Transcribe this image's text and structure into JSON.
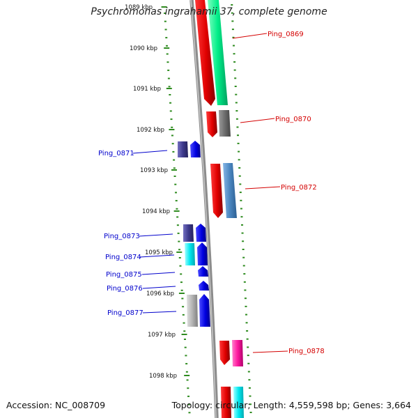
{
  "title": "Psychromonas ingrahamii 37, complete genome",
  "accession": "Accession: NC_008709",
  "summary": "Topology: circular; Length: 4,559,598 bp; Genes: 3,664",
  "colors": {
    "backbone": "#8c8c8c",
    "tick": "#2e8b1f",
    "forward_label": "#d40000",
    "reverse_label": "#0000cc"
  },
  "kbp_labels": [
    "1089 kbp",
    "1090 kbp",
    "1091 kbp",
    "1092 kbp",
    "1093 kbp",
    "1094 kbp",
    "1095 kbp",
    "1096 kbp",
    "1097 kbp",
    "1098 kbp"
  ],
  "genes": [
    {
      "id": "Ping_0869",
      "strand": "forward",
      "label_color": "#d40000",
      "feature_color": "#00ee88"
    },
    {
      "id": "Ping_0870",
      "strand": "forward",
      "label_color": "#d40000",
      "feature_color": "#6e6e6e"
    },
    {
      "id": "Ping_0871",
      "strand": "reverse",
      "label_color": "#0000cc",
      "feature_color": "#3d3a8c"
    },
    {
      "id": "Ping_0872",
      "strand": "forward",
      "label_color": "#d40000",
      "feature_color": "#4a86c0"
    },
    {
      "id": "Ping_0873",
      "strand": "reverse",
      "label_color": "#0000cc",
      "feature_color": "#3d3a8c"
    },
    {
      "id": "Ping_0874",
      "strand": "reverse",
      "label_color": "#0000cc",
      "feature_color": "#00e8f0"
    },
    {
      "id": "Ping_0875",
      "strand": "reverse",
      "label_color": "#0000cc",
      "feature_color": ""
    },
    {
      "id": "Ping_0876",
      "strand": "reverse",
      "label_color": "#0000cc",
      "feature_color": ""
    },
    {
      "id": "Ping_0877",
      "strand": "reverse",
      "label_color": "#0000cc",
      "feature_color": "#b4b4b4"
    },
    {
      "id": "Ping_0878",
      "strand": "forward",
      "label_color": "#d40000",
      "feature_color": "#ff1aa0"
    }
  ]
}
